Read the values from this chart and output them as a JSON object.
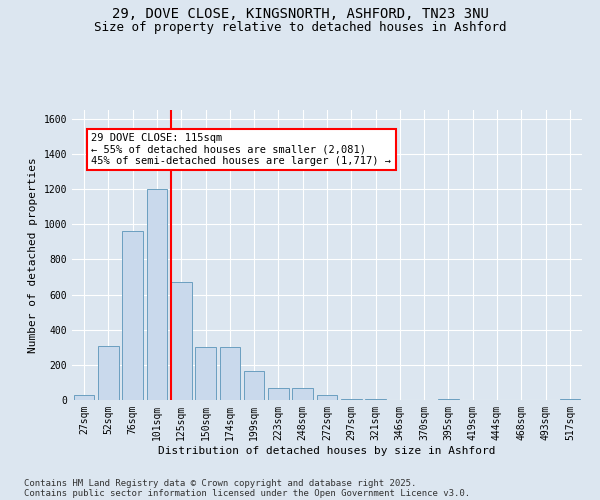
{
  "title_line1": "29, DOVE CLOSE, KINGSNORTH, ASHFORD, TN23 3NU",
  "title_line2": "Size of property relative to detached houses in Ashford",
  "xlabel": "Distribution of detached houses by size in Ashford",
  "ylabel": "Number of detached properties",
  "categories": [
    "27sqm",
    "52sqm",
    "76sqm",
    "101sqm",
    "125sqm",
    "150sqm",
    "174sqm",
    "199sqm",
    "223sqm",
    "248sqm",
    "272sqm",
    "297sqm",
    "321sqm",
    "346sqm",
    "370sqm",
    "395sqm",
    "419sqm",
    "444sqm",
    "468sqm",
    "493sqm",
    "517sqm"
  ],
  "values": [
    30,
    310,
    960,
    1200,
    670,
    300,
    300,
    165,
    70,
    70,
    30,
    5,
    5,
    0,
    0,
    4,
    0,
    0,
    0,
    0,
    4
  ],
  "bar_color": "#c9d9ec",
  "bar_edge_color": "#6a9fc0",
  "bar_width": 0.85,
  "annotation_line1": "29 DOVE CLOSE: 115sqm",
  "annotation_line2": "← 55% of detached houses are smaller (2,081)",
  "annotation_line3": "45% of semi-detached houses are larger (1,717) →",
  "ylim": [
    0,
    1650
  ],
  "yticks": [
    0,
    200,
    400,
    600,
    800,
    1000,
    1200,
    1400,
    1600
  ],
  "plot_bg_color": "#dce6f0",
  "fig_bg_color": "#dce6f0",
  "footer_line1": "Contains HM Land Registry data © Crown copyright and database right 2025.",
  "footer_line2": "Contains public sector information licensed under the Open Government Licence v3.0.",
  "title_fontsize": 10,
  "subtitle_fontsize": 9,
  "axis_label_fontsize": 8,
  "tick_fontsize": 7,
  "footer_fontsize": 6.5,
  "annot_fontsize": 7.5
}
